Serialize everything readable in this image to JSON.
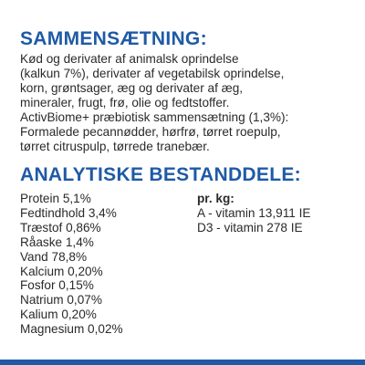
{
  "composition": {
    "heading": "SAMMENSÆTNING:",
    "lines": [
      "Kød og derivater af animalsk oprindelse",
      "(kalkun 7%), derivater af vegetabilsk oprindelse,",
      "korn, grøntsager, æg og derivater af æg,",
      "mineraler, frugt, frø, olie og fedtstoffer.",
      "ActivBiome+ præbiotisk sammensætning (1,3%):",
      "Formalede pecannødder, hørfrø, tørret roepulp,",
      "tørret citruspulp, tørrede tranebær."
    ]
  },
  "analytical": {
    "heading": "ANALYTISKE BESTANDDELE:",
    "left": [
      "Protein 5,1%",
      "Fedtindhold 3,4%",
      "Træstof 0,86%",
      "Råaske 1,4%",
      "Vand 78,8%",
      "Kalcium 0,20%",
      "Fosfor 0,15%",
      "Natrium 0,07%",
      "Kalium 0,20%",
      "Magnesium 0,02%"
    ],
    "right_heading": "pr. kg:",
    "right": [
      "A - vitamin 13,911 IE",
      "D3 - vitamin 278 IE"
    ]
  },
  "colors": {
    "heading": "#1f5aa6",
    "text": "#2a2a2a",
    "bar": "#1f5aa6"
  }
}
